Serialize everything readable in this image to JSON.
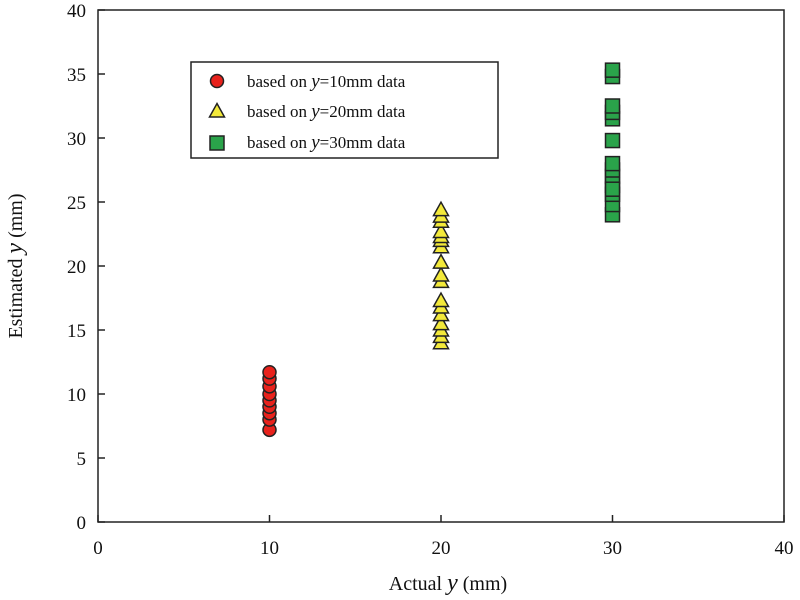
{
  "chart_data": {
    "type": "scatter",
    "xlabel": {
      "prefix": "Actual ",
      "var": "y",
      "suffix": " (mm)"
    },
    "ylabel": {
      "prefix": "Estimated ",
      "var": "y",
      "suffix": " (mm)"
    },
    "xlim": [
      0,
      40
    ],
    "ylim": [
      0,
      40
    ],
    "xticks": [
      "0",
      "10",
      "20",
      "30",
      "40"
    ],
    "yticks": [
      "0",
      "5",
      "10",
      "15",
      "20",
      "25",
      "30",
      "35",
      "40"
    ],
    "grid": false,
    "legend_position": "top-left",
    "series": [
      {
        "name": {
          "prefix": "based on ",
          "var": "y",
          "suffix": "=10mm data"
        },
        "marker": "circle",
        "color": "#e8221c",
        "x": [
          10,
          10,
          10,
          10,
          10,
          10,
          10,
          10,
          10
        ],
        "y": [
          7.2,
          8.0,
          8.5,
          9.0,
          9.5,
          10.0,
          10.6,
          11.2,
          11.7
        ]
      },
      {
        "name": {
          "prefix": "based on ",
          "var": "y",
          "suffix": "=20mm data"
        },
        "marker": "triangle",
        "color": "#f3e93a",
        "x": [
          20,
          20,
          20,
          20,
          20,
          20,
          20,
          20,
          20,
          20,
          20,
          20,
          20,
          20,
          20,
          20,
          20
        ],
        "y": [
          14.0,
          14.5,
          15.0,
          15.5,
          16.2,
          16.8,
          17.3,
          18.8,
          19.3,
          20.3,
          21.5,
          22.0,
          22.3,
          22.7,
          23.5,
          23.9,
          24.4
        ]
      },
      {
        "name": {
          "prefix": "based on ",
          "var": "y",
          "suffix": "=30mm data"
        },
        "marker": "square",
        "color": "#2aa34a",
        "x": [
          30,
          30,
          30,
          30,
          30,
          30,
          30,
          30,
          30,
          30,
          30,
          30,
          30,
          30
        ],
        "y": [
          24.0,
          24.8,
          25.6,
          26.3,
          27.0,
          27.5,
          28.0,
          29.8,
          31.5,
          32.0,
          32.5,
          34.8,
          35.3,
          26.0
        ]
      }
    ]
  }
}
